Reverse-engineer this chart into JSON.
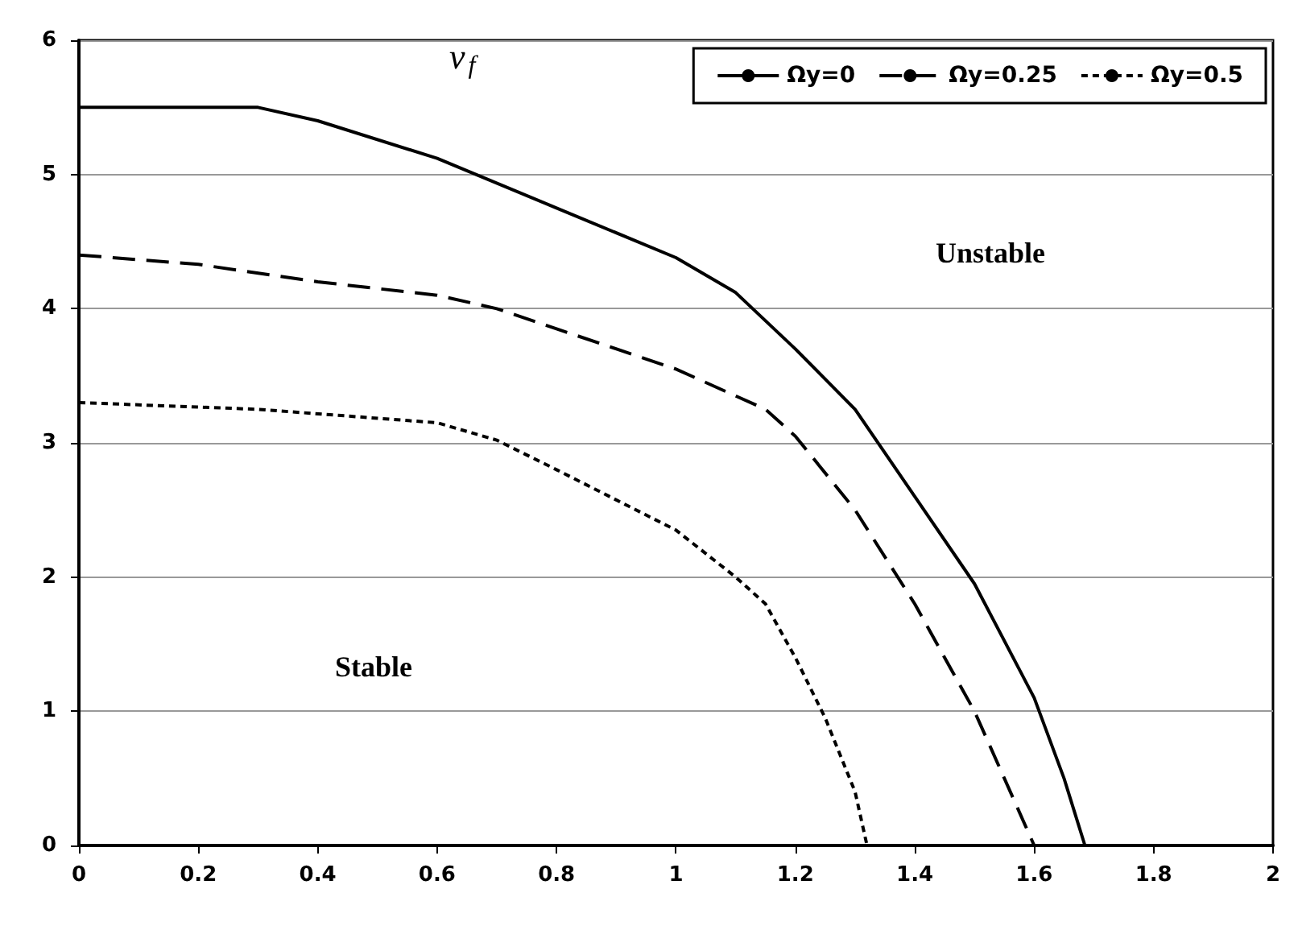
{
  "chart_data": {
    "type": "line",
    "ylabel": "v$_{f}$",
    "annotations": [
      "Unstable",
      "Stable"
    ],
    "xlim": [
      0,
      2
    ],
    "xticks": [
      0,
      0.2,
      0.4,
      0.6,
      0.8,
      1,
      1.2,
      1.4,
      1.6,
      1.8,
      2
    ],
    "ylim": [
      0,
      6
    ],
    "yticks": [
      0,
      1,
      2,
      3,
      4,
      5,
      6
    ],
    "grid": "y",
    "legend": "top right",
    "marker": "none",
    "series": [
      {
        "name": "Ωy=0",
        "color": "#000000",
        "line_style": "solid",
        "x": [
          0,
          0.3,
          0.4,
          0.6,
          0.8,
          1.0,
          1.1,
          1.2,
          1.3,
          1.4,
          1.5,
          1.6,
          1.65,
          1.685
        ],
        "values": [
          5.5,
          5.5,
          5.4,
          5.12,
          4.75,
          4.38,
          4.12,
          3.7,
          3.25,
          2.6,
          1.95,
          1.1,
          0.5,
          0
        ]
      },
      {
        "name": "Ωy=0.25",
        "color": "#000000",
        "line_style": "dashed",
        "x": [
          0,
          0.2,
          0.4,
          0.6,
          0.7,
          0.8,
          1.0,
          1.15,
          1.2,
          1.3,
          1.4,
          1.5,
          1.55,
          1.6
        ],
        "values": [
          4.4,
          4.33,
          4.2,
          4.1,
          4.0,
          3.85,
          3.55,
          3.25,
          3.05,
          2.5,
          1.8,
          1.0,
          0.5,
          0
        ]
      },
      {
        "name": "Ωy=0.5",
        "color": "#000000",
        "line_style": "dotted",
        "x": [
          0,
          0.3,
          0.6,
          0.7,
          0.8,
          1.0,
          1.1,
          1.15,
          1.2,
          1.25,
          1.3,
          1.32
        ],
        "values": [
          3.3,
          3.25,
          3.15,
          3.02,
          2.8,
          2.35,
          2.0,
          1.8,
          1.4,
          0.95,
          0.4,
          0
        ]
      }
    ]
  }
}
